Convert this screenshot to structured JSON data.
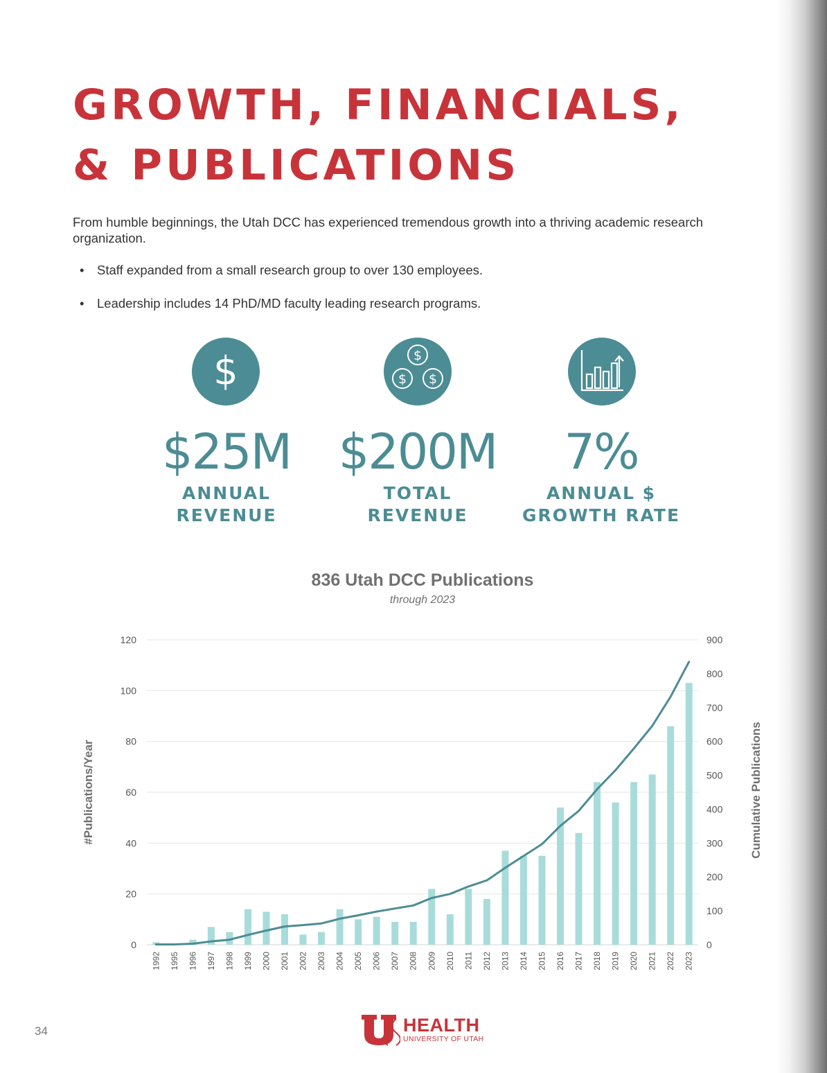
{
  "heading": {
    "line1": "GROWTH, FINANCIALS,",
    "line2": "& PUBLICATIONS"
  },
  "intro": "From humble beginnings, the Utah DCC has experienced tremendous growth into a thriving academic research organization.",
  "bullets": [
    "Staff expanded from a small research group to over 130 employees.",
    "Leadership includes 14 PhD/MD faculty leading research programs."
  ],
  "stats": [
    {
      "icon": "dollar-sign-icon",
      "value": "$25M",
      "label_line1": "ANNUAL",
      "label_line2": "REVENUE"
    },
    {
      "icon": "three-coins-icon",
      "value": "$200M",
      "label_line1": "TOTAL",
      "label_line2": "REVENUE"
    },
    {
      "icon": "growth-bar-chart-icon",
      "value": "7%",
      "label_line1": "ANNUAL $",
      "label_line2": "GROWTH RATE"
    }
  ],
  "colors": {
    "heading": "#c8333a",
    "accent": "#4c8c94",
    "bars": "#a8dcda",
    "line": "#4c8c94"
  },
  "chart_data": {
    "type": "bar",
    "title": "836 Utah DCC Publications",
    "subtitle": "through 2023",
    "ylabel": "#Publications/Year",
    "y2label": "Cumulative Publications",
    "ylim": [
      0,
      120
    ],
    "y2lim": [
      0,
      900
    ],
    "yticks": [
      0,
      20,
      40,
      60,
      80,
      100,
      120
    ],
    "y2ticks": [
      0,
      100,
      200,
      300,
      400,
      500,
      600,
      700,
      800,
      900
    ],
    "grid": true,
    "categories": [
      "1992",
      "1995",
      "1996",
      "1997",
      "1998",
      "1999",
      "2000",
      "2001",
      "2002",
      "2003",
      "2004",
      "2005",
      "2006",
      "2007",
      "2008",
      "2009",
      "2010",
      "2011",
      "2012",
      "2013",
      "2014",
      "2015",
      "2016",
      "2017",
      "2018",
      "2019",
      "2020",
      "2021",
      "2022",
      "2023"
    ],
    "series": [
      {
        "type": "bar",
        "axis": "left",
        "values": [
          1,
          0,
          2,
          7,
          5,
          14,
          13,
          12,
          4,
          5,
          14,
          10,
          11,
          9,
          9,
          22,
          12,
          22,
          18,
          37,
          35,
          35,
          54,
          44,
          64,
          56,
          64,
          67,
          86,
          103
        ]
      },
      {
        "type": "line",
        "axis": "right",
        "values": [
          1,
          1,
          3,
          10,
          15,
          29,
          42,
          54,
          58,
          63,
          77,
          87,
          98,
          107,
          116,
          138,
          150,
          172,
          190,
          227,
          262,
          297,
          351,
          395,
          459,
          515,
          579,
          646,
          732,
          835
        ]
      }
    ]
  },
  "page_number": "34",
  "logo": {
    "word": "HEALTH",
    "sub": "UNIVERSITY OF UTAH"
  }
}
